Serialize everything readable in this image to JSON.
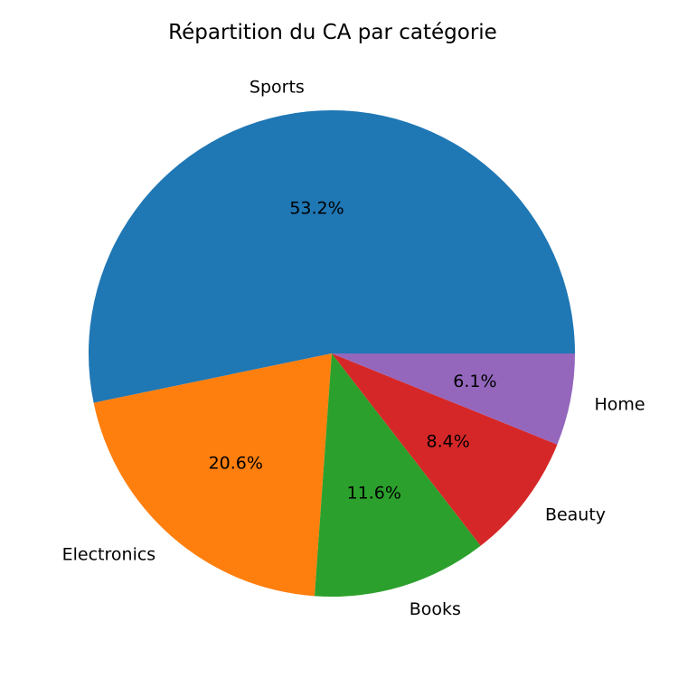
{
  "chart_data": {
    "type": "pie",
    "title": "Répartition du CA par catégorie",
    "start_angle_deg": 0,
    "direction": "counterclockwise",
    "slices": [
      {
        "label": "Sports",
        "value": 53.2,
        "pct_label": "53.2%",
        "color": "#1f77b4"
      },
      {
        "label": "Electronics",
        "value": 20.6,
        "pct_label": "20.6%",
        "color": "#ff7f0e"
      },
      {
        "label": "Books",
        "value": 11.6,
        "pct_label": "11.6%",
        "color": "#2ca02c"
      },
      {
        "label": "Beauty",
        "value": 8.4,
        "pct_label": "8.4%",
        "color": "#d62728"
      },
      {
        "label": "Home",
        "value": 6.1,
        "pct_label": "6.1%",
        "color": "#9467bd"
      }
    ]
  }
}
